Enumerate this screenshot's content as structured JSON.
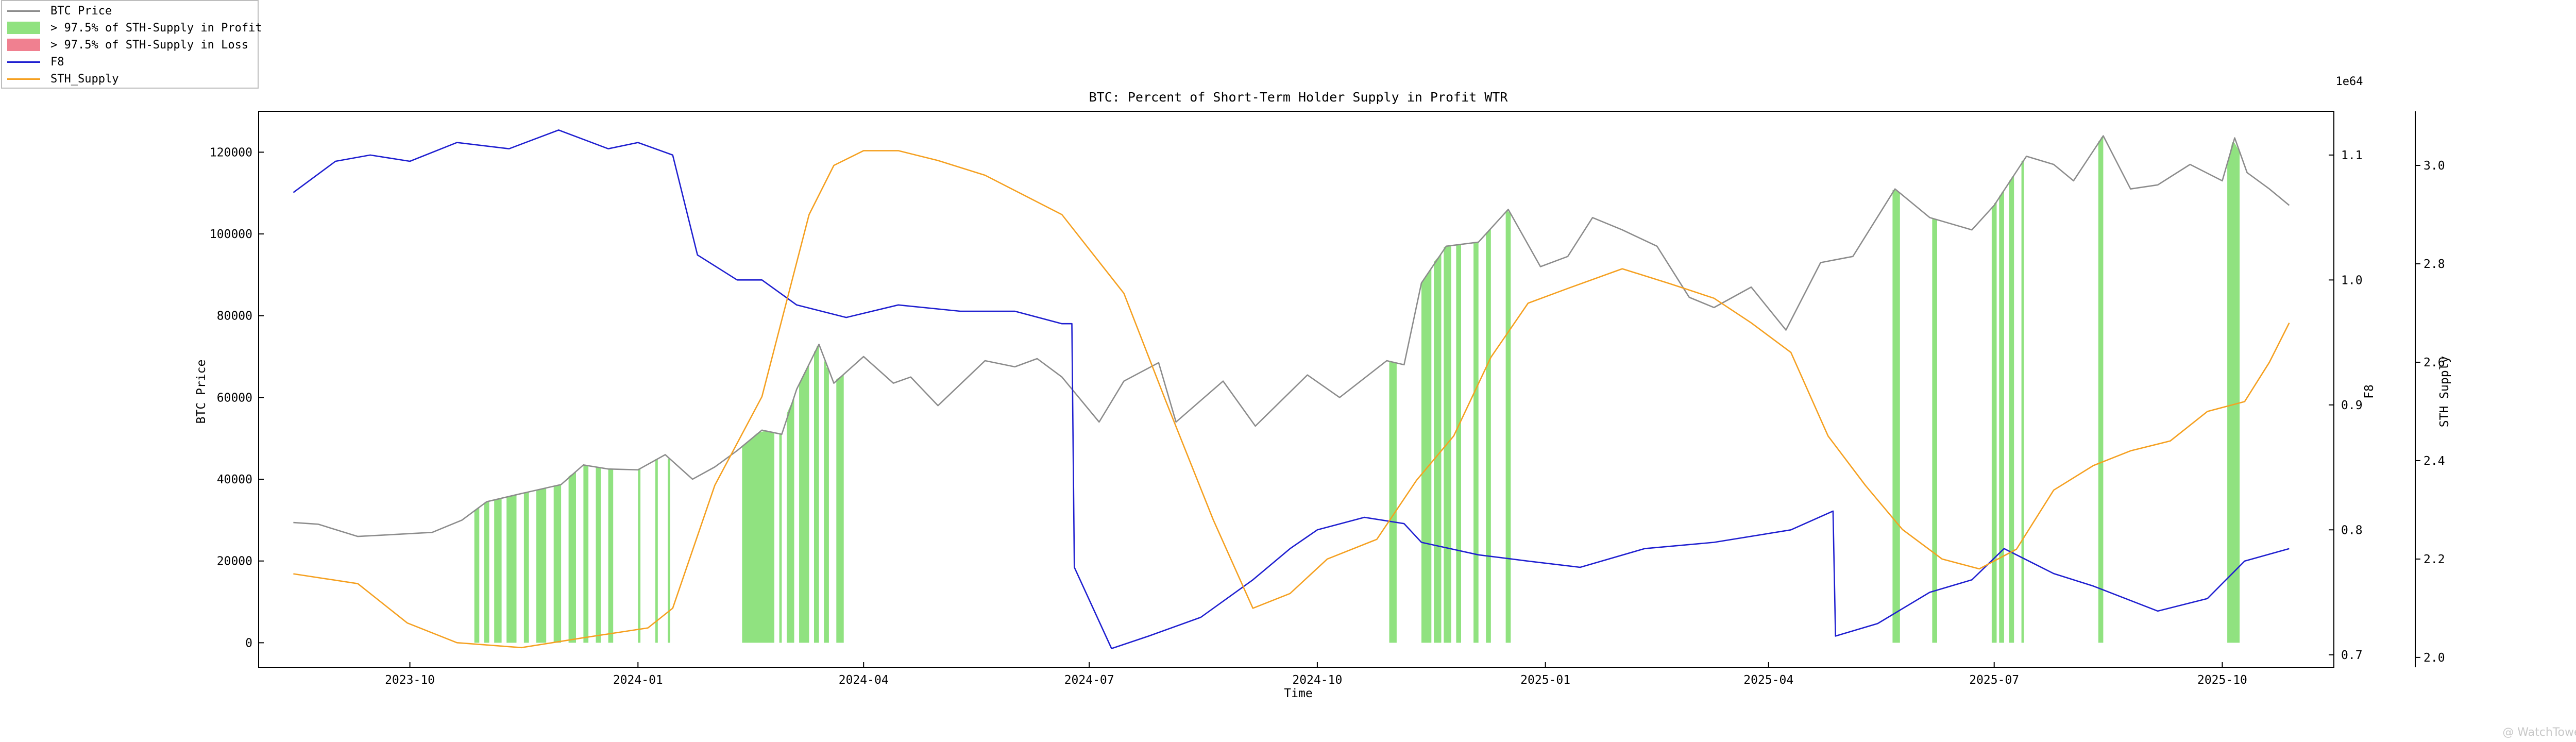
{
  "chart_data": {
    "type": "line",
    "title": "BTC: Percent of Short-Term Holder Supply in Profit WTR",
    "xlabel": "Time",
    "x_ticks": [
      "2023-10",
      "2024-01",
      "2024-04",
      "2024-07",
      "2024-10",
      "2025-01",
      "2025-04",
      "2025-07",
      "2025-10"
    ],
    "xlim": [
      "2023-08-01",
      "2025-11-15"
    ],
    "axes": {
      "left": {
        "label": "BTC Price",
        "ylim": [
          -6000,
          130000
        ],
        "ticks": [
          "0",
          "20000",
          "40000",
          "60000",
          "80000",
          "100000",
          "120000"
        ]
      },
      "right1": {
        "label": "F8",
        "ylim": [
          0.69,
          1.135
        ],
        "ticks": [
          "0.7",
          "0.8",
          "0.9",
          "1.0",
          "1.1"
        ]
      },
      "right2": {
        "label": "STH Supply",
        "ylim": [
          1.98,
          3.11
        ],
        "offset_label": "1e64",
        "ticks": [
          "2.0",
          "2.2",
          "2.4",
          "2.6",
          "2.8",
          "3.0"
        ]
      }
    },
    "legend": {
      "placement": "top-left, outside plot",
      "entries": [
        {
          "label": "BTC Price",
          "kind": "line",
          "color": "#8c8c8c"
        },
        {
          "label": "> 97.5% of STH-Supply in Profit",
          "kind": "patch",
          "color": "#90e280"
        },
        {
          "label": "> 97.5% of STH-Supply in Loss",
          "kind": "patch",
          "color": "#f08090"
        },
        {
          "label": "F8",
          "kind": "line",
          "color": "#1f1fd0"
        },
        {
          "label": "STH_Supply",
          "kind": "line",
          "color": "#f5a020"
        }
      ]
    },
    "series": [
      {
        "name": "BTC Price",
        "axis": "left",
        "color": "#8c8c8c",
        "x": [
          "2023-08-15",
          "2023-08-25",
          "2023-09-10",
          "2023-09-25",
          "2023-10-10",
          "2023-10-22",
          "2023-11-01",
          "2023-11-15",
          "2023-12-01",
          "2023-12-10",
          "2023-12-20",
          "2024-01-01",
          "2024-01-12",
          "2024-01-23",
          "2024-02-01",
          "2024-02-10",
          "2024-02-20",
          "2024-02-28",
          "2024-03-05",
          "2024-03-14",
          "2024-03-20",
          "2024-04-01",
          "2024-04-13",
          "2024-04-20",
          "2024-05-01",
          "2024-05-20",
          "2024-06-01",
          "2024-06-10",
          "2024-06-20",
          "2024-07-05",
          "2024-07-15",
          "2024-07-29",
          "2024-08-05",
          "2024-08-24",
          "2024-09-06",
          "2024-09-27",
          "2024-10-10",
          "2024-10-29",
          "2024-11-05",
          "2024-11-12",
          "2024-11-22",
          "2024-12-05",
          "2024-12-17",
          "2024-12-30",
          "2025-01-10",
          "2025-01-20",
          "2025-02-01",
          "2025-02-15",
          "2025-02-28",
          "2025-03-10",
          "2025-03-25",
          "2025-04-08",
          "2025-04-22",
          "2025-05-05",
          "2025-05-22",
          "2025-06-05",
          "2025-06-22",
          "2025-07-01",
          "2025-07-14",
          "2025-07-25",
          "2025-08-02",
          "2025-08-14",
          "2025-08-25",
          "2025-09-05",
          "2025-09-18",
          "2025-10-01",
          "2025-10-06",
          "2025-10-11",
          "2025-10-20",
          "2025-10-28"
        ],
        "y": [
          29400,
          29000,
          26000,
          26500,
          27000,
          30000,
          34500,
          36500,
          38700,
          43500,
          42500,
          42300,
          46000,
          40000,
          43000,
          47000,
          52000,
          51000,
          62000,
          73000,
          63500,
          70000,
          63500,
          65000,
          58000,
          69000,
          67500,
          69500,
          65000,
          54000,
          64000,
          68500,
          54000,
          64000,
          53000,
          65500,
          60000,
          69000,
          68000,
          88000,
          97000,
          98000,
          106000,
          92000,
          94500,
          104000,
          101000,
          97000,
          84500,
          82000,
          87000,
          76500,
          93000,
          94500,
          111000,
          104000,
          101000,
          107000,
          119000,
          117000,
          113000,
          124000,
          111000,
          112000,
          117000,
          113000,
          123500,
          115000,
          111000,
          107000
        ]
      },
      {
        "name": "F8",
        "axis": "right1",
        "color": "#1f1fd0",
        "x": [
          "2023-08-15",
          "2023-09-01",
          "2023-09-15",
          "2023-10-01",
          "2023-10-20",
          "2023-11-10",
          "2023-11-30",
          "2023-12-20",
          "2024-01-01",
          "2024-01-15",
          "2024-01-25",
          "2024-02-10",
          "2024-02-20",
          "2024-03-05",
          "2024-03-25",
          "2024-04-15",
          "2024-05-10",
          "2024-06-01",
          "2024-06-20",
          "2024-06-24",
          "2024-06-25",
          "2024-07-10",
          "2024-07-25",
          "2024-08-15",
          "2024-09-05",
          "2024-09-20",
          "2024-10-01",
          "2024-10-20",
          "2024-11-05",
          "2024-11-12",
          "2024-12-05",
          "2024-12-25",
          "2025-01-15",
          "2025-02-10",
          "2025-03-10",
          "2025-04-10",
          "2025-04-27",
          "2025-04-28",
          "2025-05-15",
          "2025-06-05",
          "2025-06-22",
          "2025-07-05",
          "2025-07-25",
          "2025-08-10",
          "2025-09-05",
          "2025-09-25",
          "2025-10-10",
          "2025-10-28"
        ],
        "y": [
          1.07,
          1.095,
          1.1,
          1.095,
          1.11,
          1.105,
          1.12,
          1.105,
          1.11,
          1.1,
          1.02,
          1.0,
          1.0,
          0.98,
          0.97,
          0.98,
          0.975,
          0.975,
          0.965,
          0.965,
          0.77,
          0.705,
          0.715,
          0.73,
          0.76,
          0.785,
          0.8,
          0.81,
          0.805,
          0.79,
          0.78,
          0.775,
          0.77,
          0.785,
          0.79,
          0.8,
          0.815,
          0.715,
          0.725,
          0.75,
          0.76,
          0.785,
          0.765,
          0.755,
          0.735,
          0.745,
          0.775,
          0.785
        ]
      },
      {
        "name": "STH_Supply",
        "axis": "right2",
        "color": "#f5a020",
        "x": [
          "2023-08-15",
          "2023-09-10",
          "2023-09-30",
          "2023-10-20",
          "2023-11-15",
          "2023-12-10",
          "2024-01-05",
          "2024-01-15",
          "2024-02-01",
          "2024-02-20",
          "2024-03-10",
          "2024-03-20",
          "2024-04-01",
          "2024-04-15",
          "2024-05-01",
          "2024-05-20",
          "2024-06-20",
          "2024-07-15",
          "2024-08-01",
          "2024-08-20",
          "2024-09-05",
          "2024-09-20",
          "2024-10-05",
          "2024-10-25",
          "2024-11-10",
          "2024-11-25",
          "2024-12-10",
          "2024-12-25",
          "2025-01-10",
          "2025-02-01",
          "2025-02-20",
          "2025-03-10",
          "2025-03-25",
          "2025-04-10",
          "2025-04-25",
          "2025-05-10",
          "2025-05-25",
          "2025-06-10",
          "2025-06-25",
          "2025-07-10",
          "2025-07-25",
          "2025-08-10",
          "2025-08-25",
          "2025-09-10",
          "2025-09-25",
          "2025-10-10",
          "2025-10-20",
          "2025-10-28"
        ],
        "y": [
          2.17,
          2.15,
          2.07,
          2.03,
          2.02,
          2.04,
          2.06,
          2.1,
          2.35,
          2.53,
          2.9,
          3.0,
          3.03,
          3.03,
          3.01,
          2.98,
          2.9,
          2.74,
          2.52,
          2.28,
          2.1,
          2.13,
          2.2,
          2.24,
          2.36,
          2.45,
          2.61,
          2.72,
          2.75,
          2.79,
          2.76,
          2.73,
          2.68,
          2.62,
          2.45,
          2.35,
          2.26,
          2.2,
          2.18,
          2.22,
          2.34,
          2.39,
          2.42,
          2.44,
          2.5,
          2.52,
          2.6,
          2.68
        ]
      }
    ],
    "profit_regions": [
      [
        "2023-10-27",
        "2023-10-29"
      ],
      [
        "2023-10-31",
        "2023-11-02"
      ],
      [
        "2023-11-04",
        "2023-11-07"
      ],
      [
        "2023-11-09",
        "2023-11-13"
      ],
      [
        "2023-11-16",
        "2023-11-18"
      ],
      [
        "2023-11-21",
        "2023-11-25"
      ],
      [
        "2023-11-28",
        "2023-12-01"
      ],
      [
        "2023-12-04",
        "2023-12-07"
      ],
      [
        "2023-12-10",
        "2023-12-12"
      ],
      [
        "2023-12-15",
        "2023-12-17"
      ],
      [
        "2023-12-20",
        "2023-12-22"
      ],
      [
        "2024-01-01",
        "2024-01-02"
      ],
      [
        "2024-01-08",
        "2024-01-09"
      ],
      [
        "2024-01-13",
        "2024-01-14"
      ],
      [
        "2024-02-12",
        "2024-02-25"
      ],
      [
        "2024-02-27",
        "2024-02-28"
      ],
      [
        "2024-03-01",
        "2024-03-04"
      ],
      [
        "2024-03-06",
        "2024-03-10"
      ],
      [
        "2024-03-12",
        "2024-03-14"
      ],
      [
        "2024-03-16",
        "2024-03-18"
      ],
      [
        "2024-03-21",
        "2024-03-24"
      ],
      [
        "2024-10-30",
        "2024-11-02"
      ],
      [
        "2024-11-12",
        "2024-11-16"
      ],
      [
        "2024-11-17",
        "2024-11-20"
      ],
      [
        "2024-11-21",
        "2024-11-24"
      ],
      [
        "2024-11-26",
        "2024-11-28"
      ],
      [
        "2024-12-03",
        "2024-12-05"
      ],
      [
        "2024-12-08",
        "2024-12-10"
      ],
      [
        "2024-12-16",
        "2024-12-18"
      ],
      [
        "2025-05-21",
        "2025-05-24"
      ],
      [
        "2025-06-06",
        "2025-06-08"
      ],
      [
        "2025-06-30",
        "2025-07-02"
      ],
      [
        "2025-07-03",
        "2025-07-05"
      ],
      [
        "2025-07-07",
        "2025-07-09"
      ],
      [
        "2025-07-12",
        "2025-07-13"
      ],
      [
        "2025-08-12",
        "2025-08-14"
      ],
      [
        "2025-10-03",
        "2025-10-08"
      ]
    ],
    "loss_regions": []
  },
  "watermark": "@ WatchTowers"
}
